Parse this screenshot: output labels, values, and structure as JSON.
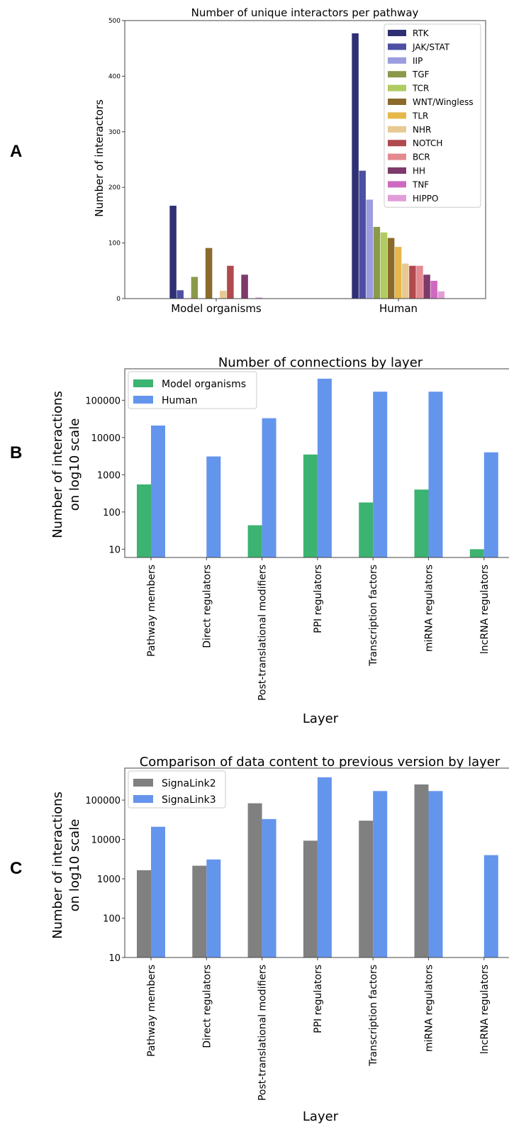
{
  "chart_data": [
    {
      "panel": "A",
      "type": "bar",
      "title": "Number of unique interactors per pathway",
      "xlabel": "",
      "ylabel": "Number of interactors",
      "yscale": "linear",
      "ylim": [
        0,
        500
      ],
      "yticks": [
        "0",
        "100",
        "200",
        "300",
        "400",
        "500"
      ],
      "categories": [
        "Model organisms",
        "Human"
      ],
      "legend_position": "top-right",
      "series": [
        {
          "name": "RTK",
          "color": "#2e3073",
          "values": [
            167,
            477
          ]
        },
        {
          "name": "JAK/STAT",
          "color": "#4d4fa3",
          "values": [
            15,
            230
          ]
        },
        {
          "name": "IIP",
          "color": "#9b9de0",
          "values": [
            0,
            178
          ]
        },
        {
          "name": "TGF",
          "color": "#8b9a4a",
          "values": [
            39,
            129
          ]
        },
        {
          "name": "TCR",
          "color": "#b0cb61",
          "values": [
            0,
            119
          ]
        },
        {
          "name": "WNT/Wingless",
          "color": "#8b6a2b",
          "values": [
            91,
            109
          ]
        },
        {
          "name": "TLR",
          "color": "#e6b84a",
          "values": [
            0,
            93
          ]
        },
        {
          "name": "NHR",
          "color": "#e8c994",
          "values": [
            14,
            63
          ]
        },
        {
          "name": "NOTCH",
          "color": "#b04a4f",
          "values": [
            59,
            59
          ]
        },
        {
          "name": "BCR",
          "color": "#e4898f",
          "values": [
            0,
            59
          ]
        },
        {
          "name": "HH",
          "color": "#7d3a6b",
          "values": [
            43,
            43
          ]
        },
        {
          "name": "TNF",
          "color": "#cd6ac0",
          "values": [
            0,
            32
          ]
        },
        {
          "name": "HIPPO",
          "color": "#e29dd8",
          "values": [
            2,
            13
          ]
        }
      ]
    },
    {
      "panel": "B",
      "type": "bar",
      "title": "Number of connections by layer",
      "xlabel": "Layer",
      "ylabel_lines": [
        "Number of interactions",
        "on log10 scale"
      ],
      "yscale": "log",
      "yrange": [
        6,
        700000
      ],
      "yticks": [
        {
          "v": 10,
          "label": "10"
        },
        {
          "v": 100,
          "label": "100"
        },
        {
          "v": 1000,
          "label": "1000"
        },
        {
          "v": 10000,
          "label": "10000"
        },
        {
          "v": 100000,
          "label": "100000"
        }
      ],
      "categories": [
        "Pathway members",
        "Direct regulators",
        "Post-translational modifiers",
        "PPI regulators",
        "Transcription factors",
        "miRNA regulators",
        "lncRNA regulators"
      ],
      "legend_position": "top-left",
      "series": [
        {
          "name": "Model organisms",
          "color": "#3cb371",
          "values": [
            550,
            null,
            44,
            3500,
            180,
            400,
            10
          ]
        },
        {
          "name": "Human",
          "color": "#6495ed",
          "values": [
            21000,
            3100,
            33000,
            380000,
            170000,
            170000,
            4000
          ]
        }
      ]
    },
    {
      "panel": "C",
      "type": "bar",
      "title": "Comparison of data content to previous version by layer",
      "xlabel": "Layer",
      "ylabel_lines": [
        "Number of interactions",
        "on log10 scale"
      ],
      "yscale": "log",
      "yrange": [
        10,
        650000
      ],
      "yticks": [
        {
          "v": 10,
          "label": "10"
        },
        {
          "v": 100,
          "label": "100"
        },
        {
          "v": 1000,
          "label": "1000"
        },
        {
          "v": 10000,
          "label": "10000"
        },
        {
          "v": 100000,
          "label": "100000"
        }
      ],
      "categories": [
        "Pathway members",
        "Direct regulators",
        "Post-translational modifiers",
        "PPI regulators",
        "Transcription factors",
        "miRNA regulators",
        "lncRNA regulators"
      ],
      "legend_position": "top-left",
      "series": [
        {
          "name": "SignaLink2",
          "color": "#808080",
          "values": [
            1650,
            2150,
            83000,
            9300,
            30000,
            250000,
            null
          ]
        },
        {
          "name": "SignaLink3",
          "color": "#6495ed",
          "values": [
            21000,
            3100,
            33000,
            380000,
            170000,
            170000,
            4000
          ]
        }
      ]
    }
  ]
}
